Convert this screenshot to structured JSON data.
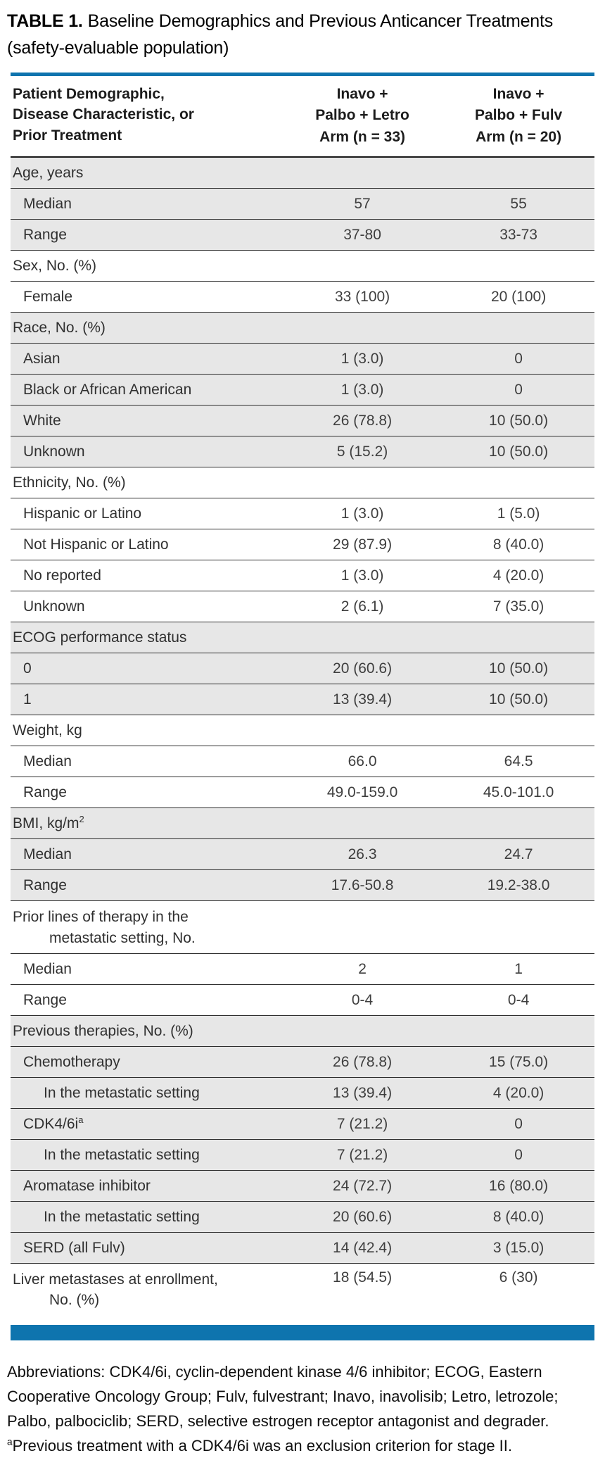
{
  "title": {
    "label": "TABLE 1.",
    "caption": "Baseline Demographics and Previous Anticancer Treatments (safety-evaluable population)"
  },
  "colors": {
    "accent_blue": "#0E74AE",
    "row_shade": "#E7E7E7",
    "rule_dark": "#2F2F2F"
  },
  "table": {
    "header": {
      "col1_lines": [
        "Patient Demographic,",
        "Disease Characteristic, or",
        "Prior Treatment"
      ],
      "col2_lines": [
        "Inavo +",
        "Palbo + Letro",
        "Arm (n = 33)"
      ],
      "col3_lines": [
        "Inavo +",
        "Palbo + Fulv",
        "Arm (n = 20)"
      ]
    },
    "rows": [
      {
        "label": "Age, years",
        "indent": 0,
        "shaded": true,
        "v1": "",
        "v2": ""
      },
      {
        "label": "Median",
        "indent": 1,
        "shaded": true,
        "v1": "57",
        "v2": "55"
      },
      {
        "label": "Range",
        "indent": 1,
        "shaded": true,
        "v1": "37-80",
        "v2": "33-73"
      },
      {
        "label": "Sex, No. (%)",
        "indent": 0,
        "shaded": false,
        "v1": "",
        "v2": ""
      },
      {
        "label": "Female",
        "indent": 1,
        "shaded": false,
        "v1": "33 (100)",
        "v2": "20 (100)"
      },
      {
        "label": "Race, No. (%)",
        "indent": 0,
        "shaded": true,
        "v1": "",
        "v2": ""
      },
      {
        "label": "Asian",
        "indent": 1,
        "shaded": true,
        "v1": "1 (3.0)",
        "v2": "0"
      },
      {
        "label": "Black or African American",
        "indent": 1,
        "shaded": true,
        "v1": "1 (3.0)",
        "v2": "0"
      },
      {
        "label": "White",
        "indent": 1,
        "shaded": true,
        "v1": "26 (78.8)",
        "v2": "10 (50.0)"
      },
      {
        "label": "Unknown",
        "indent": 1,
        "shaded": true,
        "v1": "5 (15.2)",
        "v2": "10 (50.0)"
      },
      {
        "label": "Ethnicity, No. (%)",
        "indent": 0,
        "shaded": false,
        "v1": "",
        "v2": ""
      },
      {
        "label": "Hispanic or Latino",
        "indent": 1,
        "shaded": false,
        "v1": "1 (3.0)",
        "v2": "1 (5.0)"
      },
      {
        "label": "Not Hispanic or Latino",
        "indent": 1,
        "shaded": false,
        "v1": "29 (87.9)",
        "v2": "8 (40.0)"
      },
      {
        "label": "No reported",
        "indent": 1,
        "shaded": false,
        "v1": "1 (3.0)",
        "v2": "4 (20.0)"
      },
      {
        "label": "Unknown",
        "indent": 1,
        "shaded": false,
        "v1": "2 (6.1)",
        "v2": "7 (35.0)"
      },
      {
        "label": "ECOG performance status",
        "indent": 0,
        "shaded": true,
        "v1": "",
        "v2": ""
      },
      {
        "label": "0",
        "indent": 1,
        "shaded": true,
        "v1": "20 (60.6)",
        "v2": "10 (50.0)"
      },
      {
        "label": "1",
        "indent": 1,
        "shaded": true,
        "v1": "13 (39.4)",
        "v2": "10 (50.0)"
      },
      {
        "label": "Weight, kg",
        "indent": 0,
        "shaded": false,
        "v1": "",
        "v2": ""
      },
      {
        "label": "Median",
        "indent": 1,
        "shaded": false,
        "v1": "66.0",
        "v2": "64.5"
      },
      {
        "label": "Range",
        "indent": 1,
        "shaded": false,
        "v1": "49.0-159.0",
        "v2": "45.0-101.0"
      },
      {
        "label": "BMI, kg/m",
        "sup": "2",
        "indent": 0,
        "shaded": true,
        "v1": "",
        "v2": ""
      },
      {
        "label": "Median",
        "indent": 1,
        "shaded": true,
        "v1": "26.3",
        "v2": "24.7"
      },
      {
        "label": "Range",
        "indent": 1,
        "shaded": true,
        "v1": "17.6-50.8",
        "v2": "19.2-38.0"
      },
      {
        "label": "Prior lines of therapy in the",
        "label2": "metastatic setting, No.",
        "indent": 0,
        "shaded": false,
        "v1": "",
        "v2": ""
      },
      {
        "label": "Median",
        "indent": 1,
        "shaded": false,
        "v1": "2",
        "v2": "1"
      },
      {
        "label": "Range",
        "indent": 1,
        "shaded": false,
        "v1": "0-4",
        "v2": "0-4"
      },
      {
        "label": "Previous therapies, No. (%)",
        "indent": 0,
        "shaded": true,
        "v1": "",
        "v2": ""
      },
      {
        "label": "Chemotherapy",
        "indent": 1,
        "shaded": true,
        "v1": "26 (78.8)",
        "v2": "15 (75.0)"
      },
      {
        "label": "In the metastatic setting",
        "indent": 2,
        "shaded": true,
        "v1": "13 (39.4)",
        "v2": "4 (20.0)"
      },
      {
        "label": "CDK4/6i",
        "sup": "a",
        "indent": 1,
        "shaded": true,
        "v1": "7 (21.2)",
        "v2": "0"
      },
      {
        "label": "In the metastatic setting",
        "indent": 2,
        "shaded": true,
        "v1": "7 (21.2)",
        "v2": "0"
      },
      {
        "label": "Aromatase inhibitor",
        "indent": 1,
        "shaded": true,
        "v1": "24 (72.7)",
        "v2": "16 (80.0)"
      },
      {
        "label": "In the metastatic setting",
        "indent": 2,
        "shaded": true,
        "v1": "20 (60.6)",
        "v2": "8 (40.0)"
      },
      {
        "label": "SERD (all Fulv)",
        "indent": 1,
        "shaded": true,
        "v1": "14 (42.4)",
        "v2": "3 (15.0)"
      },
      {
        "label": "Liver metastases at enrollment,",
        "label2": "No. (%)",
        "indent": 0,
        "shaded": false,
        "v1": "18 (54.5)",
        "v2": "6 (30)"
      }
    ]
  },
  "footer": {
    "abbreviations": "Abbreviations: CDK4/6i, cyclin-dependent kinase 4/6 inhibitor; ECOG, Eastern Cooperative Oncology Group; Fulv, fulvestrant; Inavo, inavolisib; Letro, letrozole; Palbo, palbociclib; SERD, selective estrogen receptor antagonist and degrader.",
    "footnote_marker": "a",
    "footnote_text": "Previous treatment with a CDK4/6i was an exclusion criterion for stage II."
  }
}
